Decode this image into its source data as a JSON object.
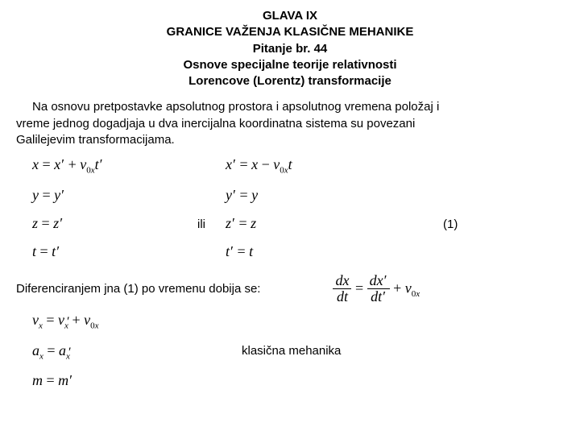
{
  "header": {
    "line1": "GLAVA IX",
    "line2": "GRANICE VAŽENJA KLASIČNE MEHANIKE",
    "line3": "Pitanje br. 44",
    "line4": "Osnove specijalne teorije relativnosti",
    "line5": "Lorencove (Lorentz) transformacije"
  },
  "paragraph": {
    "l1": "Na osnovu pretpostavke apsolutnog prostora i apsolutnog vremena položaj i",
    "l2": "vreme jednog dogadjaja u dva inercijalna koordinatna sistema su povezani",
    "l3": "Galilejevim transformacijama."
  },
  "ili": "ili",
  "eqnum": "(1)",
  "diff_label": "Diferenciranjem jna (1) po vremenu dobija se:",
  "km_label": "klasična mehanika"
}
